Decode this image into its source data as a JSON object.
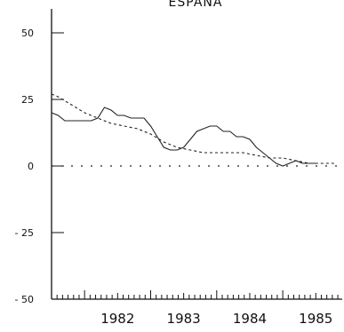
{
  "chart_data": {
    "type": "line",
    "title": "ESPANA",
    "xlabel": "",
    "ylabel": "",
    "ylim": [
      -50,
      50
    ],
    "xlim": [
      1981.5,
      1985.9
    ],
    "yticks": [
      50,
      25,
      0,
      -25,
      -50
    ],
    "ytick_labels": [
      "50",
      "25",
      "0",
      "- 25",
      "- 50"
    ],
    "xticks": [
      1982,
      1983,
      1984,
      1985
    ],
    "xtick_labels": [
      "1982",
      "1983",
      "1984",
      "1985"
    ],
    "grid": false,
    "series": [
      {
        "style": "solid",
        "x": [
          1981.5,
          1981.6,
          1981.7,
          1981.8,
          1981.9,
          1982.0,
          1982.1,
          1982.2,
          1982.3,
          1982.4,
          1982.5,
          1982.6,
          1982.7,
          1982.8,
          1982.9,
          1983.0,
          1983.1,
          1983.2,
          1983.3,
          1983.4,
          1983.5,
          1983.6,
          1983.7,
          1983.8,
          1983.9,
          1984.0,
          1984.1,
          1984.2,
          1984.3,
          1984.4,
          1984.5,
          1984.6,
          1984.7,
          1984.8,
          1984.9,
          1985.0,
          1985.1,
          1985.2,
          1985.3,
          1985.4,
          1985.5
        ],
        "y": [
          20,
          19,
          17,
          17,
          17,
          17,
          17,
          18,
          22,
          21,
          19,
          19,
          18,
          18,
          18,
          15,
          11,
          7,
          6,
          6,
          7,
          10,
          13,
          14,
          15,
          15,
          13,
          13,
          11,
          11,
          10,
          7,
          5,
          3,
          1,
          0,
          1,
          2,
          1,
          1,
          1
        ]
      },
      {
        "style": "dashed",
        "x": [
          1981.5,
          1981.6,
          1981.8,
          1982.0,
          1982.2,
          1982.4,
          1982.6,
          1982.8,
          1983.0,
          1983.2,
          1983.4,
          1983.6,
          1983.8,
          1984.0,
          1984.2,
          1984.4,
          1984.6,
          1984.8,
          1985.0,
          1985.2,
          1985.4,
          1985.6,
          1985.8
        ],
        "y": [
          27,
          26,
          23,
          20,
          18,
          16,
          15,
          14,
          12,
          9,
          7,
          6,
          5,
          5,
          5,
          5,
          4,
          3,
          3,
          2,
          1,
          1,
          1
        ]
      },
      {
        "style": "dotted",
        "x": [
          1981.5,
          1985.9
        ],
        "y": [
          0,
          0
        ]
      }
    ]
  }
}
